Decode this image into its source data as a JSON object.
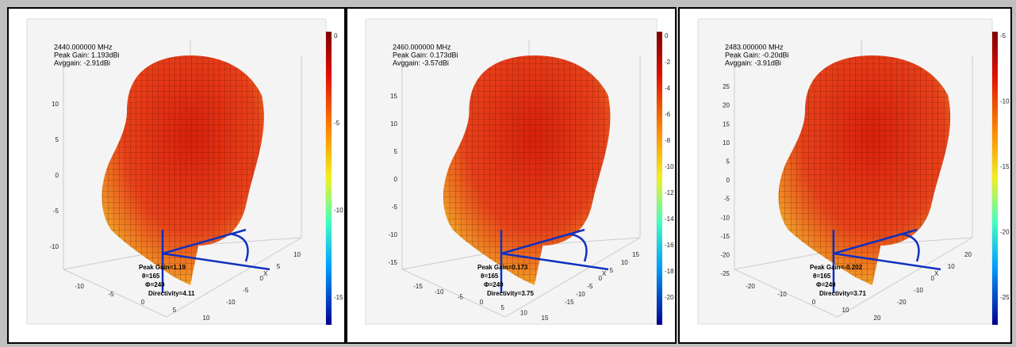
{
  "panels": [
    {
      "header": [
        "2440.000000 MHz",
        "Peak Gain: 1.193dBi",
        "Avggain: -2.91dBi"
      ],
      "annotation": [
        "Peak Gain=1.19",
        "θ=165",
        "Φ=240",
        "Directivity=4.11"
      ],
      "axis_label": "X",
      "z_ticks": [
        10,
        5,
        0,
        -5,
        -10
      ],
      "colorbar_ticks": [
        0,
        -5,
        -10,
        -15
      ],
      "front_ticks": [
        -10,
        -5,
        0,
        5,
        10
      ],
      "side_ticks": [
        -10,
        -5,
        0,
        5,
        10
      ]
    },
    {
      "header": [
        "2460.000000 MHz",
        "Peak Gain: 0.173dBi",
        "Avggain: -3.57dBi"
      ],
      "annotation": [
        "Peak Gain=0.173",
        "θ=165",
        "Φ=240",
        "Directivity=3.75"
      ],
      "axis_label": "X",
      "z_ticks": [
        15,
        10,
        5,
        0,
        -5,
        -10,
        -15
      ],
      "colorbar_ticks": [
        0,
        -2,
        -4,
        -6,
        -8,
        -10,
        -12,
        -14,
        -16,
        -18,
        -20
      ],
      "front_ticks": [
        -15,
        -10,
        -5,
        0,
        5,
        10,
        15
      ],
      "side_ticks": [
        -15,
        -10,
        -5,
        0,
        5,
        10,
        15
      ]
    },
    {
      "header": [
        "2483.000000 MHz",
        "Peak Gain: -0.20dBi",
        "Avggain: -3.91dBi"
      ],
      "annotation": [
        "Peak Gain=-0.202",
        "θ=165",
        "Φ=240",
        "Directivity=3.71"
      ],
      "axis_label": "X",
      "z_ticks": [
        25,
        20,
        15,
        10,
        5,
        0,
        -5,
        -10,
        -15,
        -20,
        -25
      ],
      "colorbar_ticks": [
        -5,
        -10,
        -15,
        -20,
        -25
      ],
      "front_ticks": [
        -20,
        -10,
        0,
        10,
        20
      ],
      "side_ticks": [
        -20,
        -10,
        0,
        10,
        20
      ]
    }
  ]
}
